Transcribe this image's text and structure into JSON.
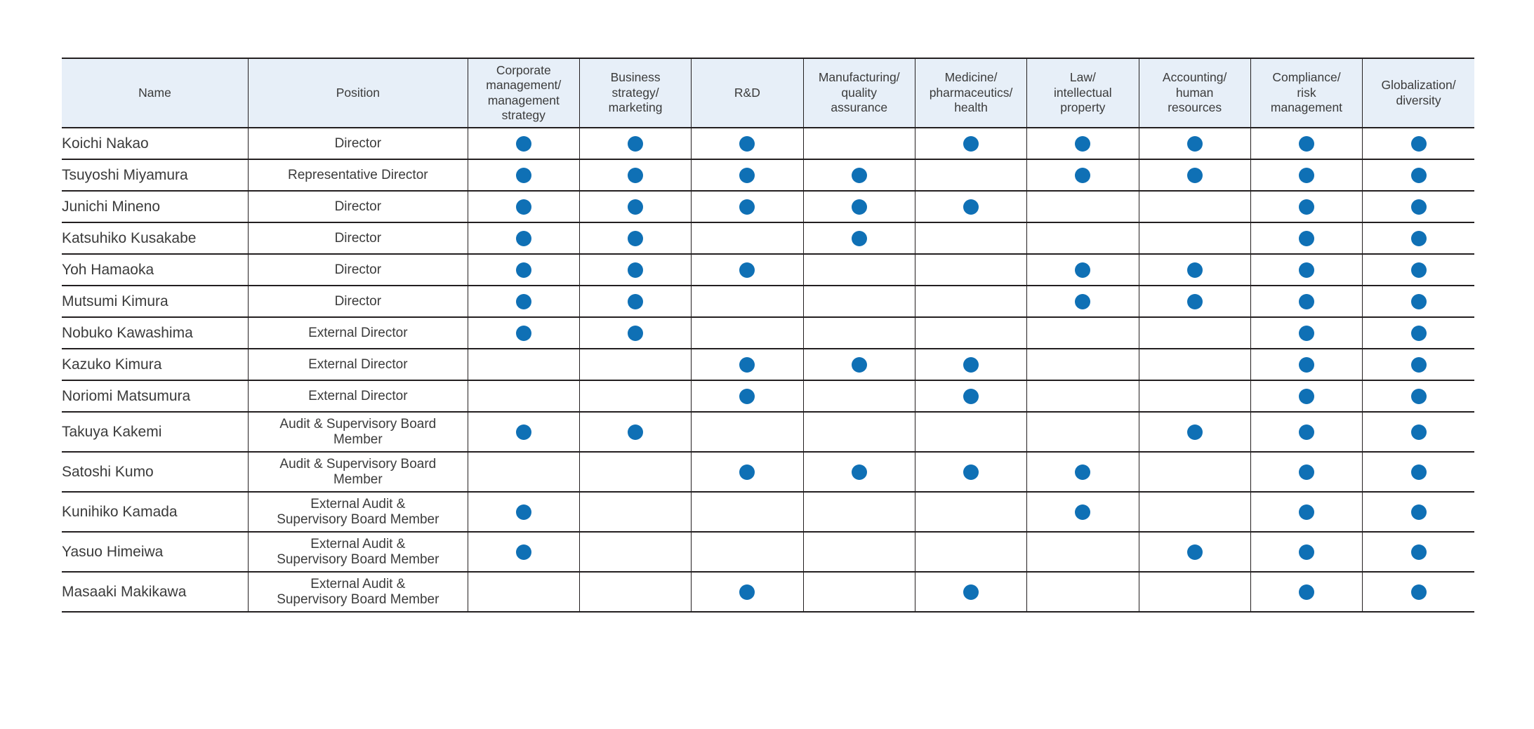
{
  "colors": {
    "dot": "#0f70b5",
    "header_bg": "#e7eff8",
    "border": "#231f20",
    "text": "#3b3b3b",
    "page_bg": "#ffffff"
  },
  "chart_data": {
    "type": "table",
    "legend": {
      "dot_icon_meaning": "filled-blue-dot"
    },
    "skill_column_ids": [
      "corporate-management",
      "business-strategy",
      "rd",
      "manufacturing",
      "medicine",
      "law",
      "accounting",
      "compliance",
      "globalization"
    ],
    "columns": [
      {
        "id": "name",
        "label": "Name"
      },
      {
        "id": "position",
        "label": "Position"
      },
      {
        "id": "corporate-management",
        "label": "Corporate\nmanagement/\nmanagement\nstrategy"
      },
      {
        "id": "business-strategy",
        "label": "Business\nstrategy/\nmarketing"
      },
      {
        "id": "rd",
        "label": "R&D"
      },
      {
        "id": "manufacturing",
        "label": "Manufacturing/\nquality\nassurance"
      },
      {
        "id": "medicine",
        "label": "Medicine/\npharmaceutics/\nhealth"
      },
      {
        "id": "law",
        "label": "Law/\nintellectual\nproperty"
      },
      {
        "id": "accounting",
        "label": "Accounting/\nhuman\nresources"
      },
      {
        "id": "compliance",
        "label": "Compliance/\nrisk\nmanagement"
      },
      {
        "id": "globalization",
        "label": "Globalization/\ndiversity"
      }
    ],
    "rows": [
      {
        "name": "Koichi Nakao",
        "position": "Director",
        "skills": [
          1,
          1,
          1,
          0,
          1,
          1,
          1,
          1,
          1
        ]
      },
      {
        "name": "Tsuyoshi Miyamura",
        "position": "Representative Director",
        "skills": [
          1,
          1,
          1,
          1,
          0,
          1,
          1,
          1,
          1
        ]
      },
      {
        "name": "Junichi Mineno",
        "position": "Director",
        "skills": [
          1,
          1,
          1,
          1,
          1,
          0,
          0,
          1,
          1
        ]
      },
      {
        "name": "Katsuhiko Kusakabe",
        "position": "Director",
        "skills": [
          1,
          1,
          0,
          1,
          0,
          0,
          0,
          1,
          1
        ]
      },
      {
        "name": "Yoh Hamaoka",
        "position": "Director",
        "skills": [
          1,
          1,
          1,
          0,
          0,
          1,
          1,
          1,
          1
        ]
      },
      {
        "name": "Mutsumi Kimura",
        "position": "Director",
        "skills": [
          1,
          1,
          0,
          0,
          0,
          1,
          1,
          1,
          1
        ]
      },
      {
        "name": "Nobuko Kawashima",
        "position": "External Director",
        "skills": [
          1,
          1,
          0,
          0,
          0,
          0,
          0,
          1,
          1
        ]
      },
      {
        "name": "Kazuko Kimura",
        "position": "External Director",
        "skills": [
          0,
          0,
          1,
          1,
          1,
          0,
          0,
          1,
          1
        ]
      },
      {
        "name": "Noriomi Matsumura",
        "position": "External Director",
        "skills": [
          0,
          0,
          1,
          0,
          1,
          0,
          0,
          1,
          1
        ]
      },
      {
        "name": "Takuya Kakemi",
        "position": "Audit & Supervisory Board\nMember",
        "skills": [
          1,
          1,
          0,
          0,
          0,
          0,
          1,
          1,
          1
        ]
      },
      {
        "name": "Satoshi Kumo",
        "position": "Audit & Supervisory Board\nMember",
        "skills": [
          0,
          0,
          1,
          1,
          1,
          1,
          0,
          1,
          1
        ]
      },
      {
        "name": "Kunihiko Kamada",
        "position": "External Audit &\nSupervisory Board Member",
        "skills": [
          1,
          0,
          0,
          0,
          0,
          1,
          0,
          1,
          1
        ]
      },
      {
        "name": "Yasuo Himeiwa",
        "position": "External Audit &\nSupervisory Board Member",
        "skills": [
          1,
          0,
          0,
          0,
          0,
          0,
          1,
          1,
          1
        ]
      },
      {
        "name": "Masaaki Makikawa",
        "position": "External Audit &\nSupervisory Board Member",
        "skills": [
          0,
          0,
          1,
          0,
          1,
          0,
          0,
          1,
          1
        ]
      }
    ]
  }
}
